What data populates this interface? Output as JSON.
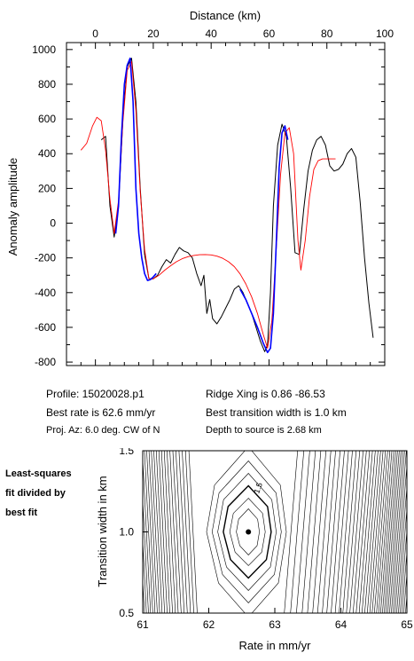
{
  "chart_data": [
    {
      "type": "line",
      "xlabel": "Distance (km)",
      "ylabel": "Anomaly amplitude",
      "xlim": [
        -10,
        100
      ],
      "ylim": [
        -820,
        1040
      ],
      "x_ticks": [
        "0",
        "20",
        "40",
        "60",
        "80",
        "100"
      ],
      "y_ticks": [
        "1000",
        "800",
        "600",
        "400",
        "200",
        "0",
        "-200",
        "-400",
        "-600",
        "-800"
      ],
      "series": [
        {
          "color": "#000000",
          "x": [
            2,
            3.5,
            5,
            6.5,
            8,
            9.5,
            11,
            12.5,
            14,
            15.5,
            17,
            18.5,
            20,
            21.5,
            23,
            24.5,
            26,
            27.5,
            29,
            30.5,
            32,
            33.5,
            35,
            36.5,
            37.5,
            38.5,
            39.5,
            40.5,
            42,
            43.5,
            45,
            46.5,
            48,
            49.5,
            51,
            52.5,
            54,
            55.5,
            57,
            58.5,
            59.5,
            60.5,
            61.5,
            63,
            64.5,
            66,
            67.5,
            69,
            70.5,
            72,
            73.5,
            75,
            76.5,
            78,
            79.5,
            81,
            82.5,
            84,
            85.5,
            87,
            88.5,
            90,
            91.5,
            93,
            94.5,
            96
          ],
          "y": [
            480,
            500,
            100,
            -80,
            100,
            600,
            900,
            950,
            700,
            200,
            -180,
            -320,
            -320,
            -300,
            -250,
            -210,
            -230,
            -180,
            -140,
            -160,
            -170,
            -200,
            -290,
            -360,
            -300,
            -520,
            -440,
            -550,
            -580,
            -540,
            -490,
            -440,
            -380,
            -360,
            -400,
            -460,
            -520,
            -600,
            -680,
            -740,
            -700,
            -400,
            100,
            450,
            570,
            500,
            200,
            -170,
            -180,
            80,
            300,
            420,
            480,
            500,
            450,
            330,
            300,
            310,
            340,
            400,
            430,
            380,
            120,
            -200,
            -460,
            -660
          ]
        },
        {
          "color": "#ff0000",
          "x": [
            -5,
            -3,
            -1,
            0.5,
            2,
            3.5,
            5,
            6.5,
            8,
            9.5,
            11,
            12.5,
            14,
            15.5,
            17,
            18.5,
            20,
            22,
            24,
            26,
            28,
            30,
            32,
            34,
            36,
            38,
            40,
            42,
            44,
            46,
            48,
            50,
            52,
            54,
            56,
            58,
            59.5,
            61,
            62.5,
            64,
            65.5,
            67,
            68.5,
            70,
            71,
            72.5,
            74,
            75.5,
            77,
            78.5,
            80,
            81.5,
            83
          ],
          "y": [
            420,
            460,
            560,
            610,
            590,
            420,
            140,
            -60,
            130,
            580,
            880,
            930,
            650,
            180,
            -150,
            -320,
            -320,
            -300,
            -270,
            -245,
            -222,
            -205,
            -193,
            -186,
            -182,
            -181,
            -183,
            -190,
            -202,
            -222,
            -250,
            -292,
            -350,
            -425,
            -520,
            -640,
            -720,
            -560,
            -150,
            280,
            520,
            550,
            400,
            -100,
            -270,
            -100,
            150,
            310,
            360,
            370,
            370,
            370,
            370
          ]
        },
        {
          "color": "#0000ff",
          "x": [
            7,
            8,
            9,
            10,
            11,
            12,
            13,
            14,
            15,
            16,
            17,
            18,
            19,
            20,
            21
          ],
          "y": [
            -60,
            100,
            500,
            800,
            910,
            950,
            700,
            200,
            -60,
            -200,
            -290,
            -330,
            -325,
            -310,
            -290
          ]
        },
        {
          "color": "#0000ff",
          "x": [
            50,
            52,
            54,
            56,
            58,
            59.5,
            60.5,
            61.5,
            62.5,
            63.5,
            64.5,
            65.5,
            66.5
          ],
          "y": [
            -380,
            -440,
            -520,
            -600,
            -690,
            -745,
            -720,
            -520,
            -120,
            320,
            520,
            560,
            480
          ]
        }
      ]
    },
    {
      "type": "heatmap",
      "xlabel": "Rate in mm/yr",
      "ylabel": "Transition width in km",
      "xlim": [
        61,
        65
      ],
      "ylim": [
        0.5,
        1.5
      ],
      "x_ticks": [
        "61",
        "62",
        "63",
        "64",
        "65"
      ],
      "y_ticks": [
        "1.5",
        "1.0",
        "0.5"
      ],
      "best_fit": {
        "rate": 62.6,
        "width": 1.0
      },
      "contour_label": "1.5"
    }
  ],
  "info": {
    "profile": "Profile: 15020028.p1",
    "ridge": "Ridge Xing is 0.86 -86.53",
    "rate": "Best rate is 62.6 mm/yr",
    "transition": "Best transition width is 1.0 km",
    "projection": "Proj. Az: 6.0 deg. CW of N",
    "depth": "Depth to source is   2.68 km"
  },
  "side_label": [
    "Least-squares",
    "fit divided by",
    "best fit"
  ]
}
